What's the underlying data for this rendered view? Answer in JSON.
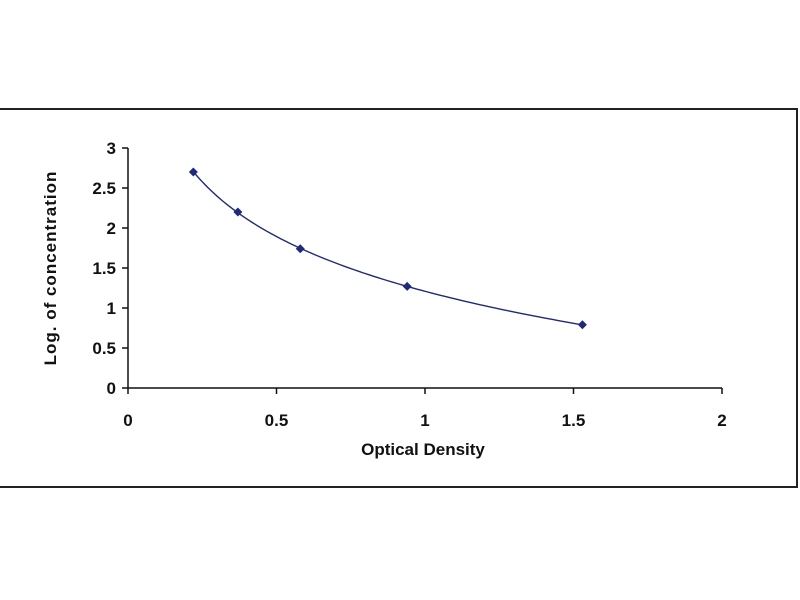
{
  "chart_data": {
    "type": "scatter",
    "title": "",
    "xlabel": "Optical Density",
    "ylabel": "Log. of concentration",
    "xlim": [
      0,
      2
    ],
    "ylim": [
      0,
      3
    ],
    "x_ticks": [
      "0",
      "0.5",
      "1",
      "1.5",
      "2"
    ],
    "y_ticks": [
      "0",
      "0.5",
      "1",
      "1.5",
      "2",
      "2.5",
      "3"
    ],
    "grid": false,
    "legend": "none",
    "series": [
      {
        "marker_color": "#1f2a7a",
        "line_color": "#1f2a7a",
        "x": [
          0.22,
          0.37,
          0.58,
          0.94,
          1.53
        ],
        "y": [
          2.7,
          2.2,
          1.74,
          1.27,
          0.79
        ]
      }
    ]
  }
}
